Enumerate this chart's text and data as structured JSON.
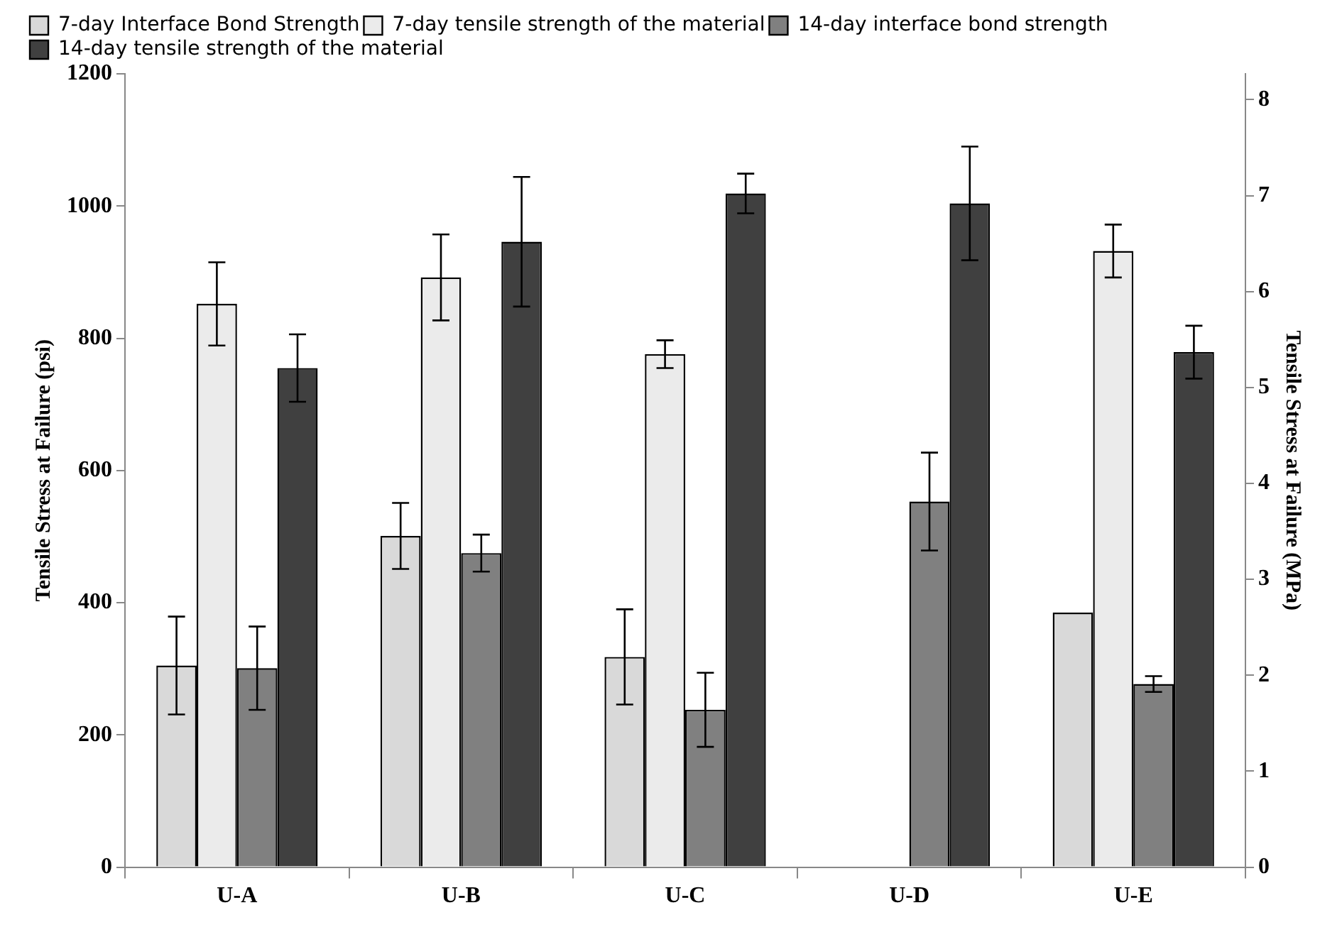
{
  "chart_data": {
    "type": "bar",
    "categories": [
      "U-A",
      "U-B",
      "U-C",
      "U-D",
      "U-E"
    ],
    "ylabel": "Tensile Stress at Failure (psi)",
    "y2label": "Tensile Stress at Failure (MPa)",
    "ylim": [
      0,
      1200
    ],
    "yticks": [
      0,
      200,
      400,
      600,
      800,
      1000,
      1200
    ],
    "y2lim": [
      0,
      8.27
    ],
    "y2ticks": [
      0,
      1,
      2,
      3,
      4,
      5,
      6,
      7,
      8
    ],
    "grid": false,
    "legend": "top left",
    "series": [
      {
        "name": "7-day Interface Bond Strength",
        "color": "#d9d9d9",
        "values": [
          305,
          501,
          318,
          null,
          385
        ],
        "errors": [
          74,
          50,
          72,
          null,
          null
        ]
      },
      {
        "name": "7-day tensile strength of the material",
        "color": "#ebebeb",
        "values": [
          852,
          892,
          776,
          null,
          932
        ],
        "errors": [
          63,
          65,
          21,
          null,
          40
        ]
      },
      {
        "name": "14-day interface bond strength",
        "color": "#808080",
        "values": [
          301,
          475,
          238,
          553,
          277
        ],
        "errors": [
          63,
          28,
          56,
          74,
          12
        ]
      },
      {
        "name": "14-day tensile strength of the material",
        "color": "#404040",
        "values": [
          755,
          946,
          1019,
          1004,
          779
        ],
        "errors": [
          51,
          98,
          30,
          86,
          40
        ]
      }
    ]
  }
}
